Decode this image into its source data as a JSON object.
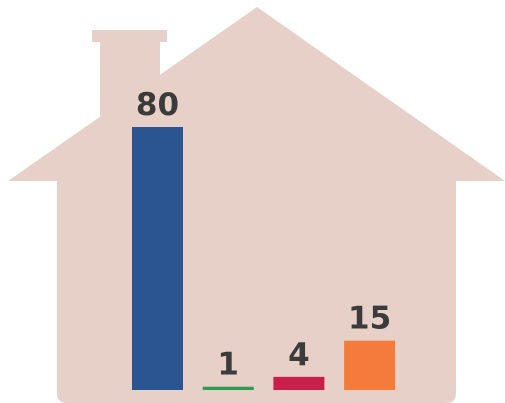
{
  "chart_data": {
    "type": "bar",
    "values": [
      80,
      1,
      4,
      15
    ],
    "colors": [
      "#2a5591",
      "#2e9b50",
      "#c9204b",
      "#f47b3b"
    ]
  }
}
